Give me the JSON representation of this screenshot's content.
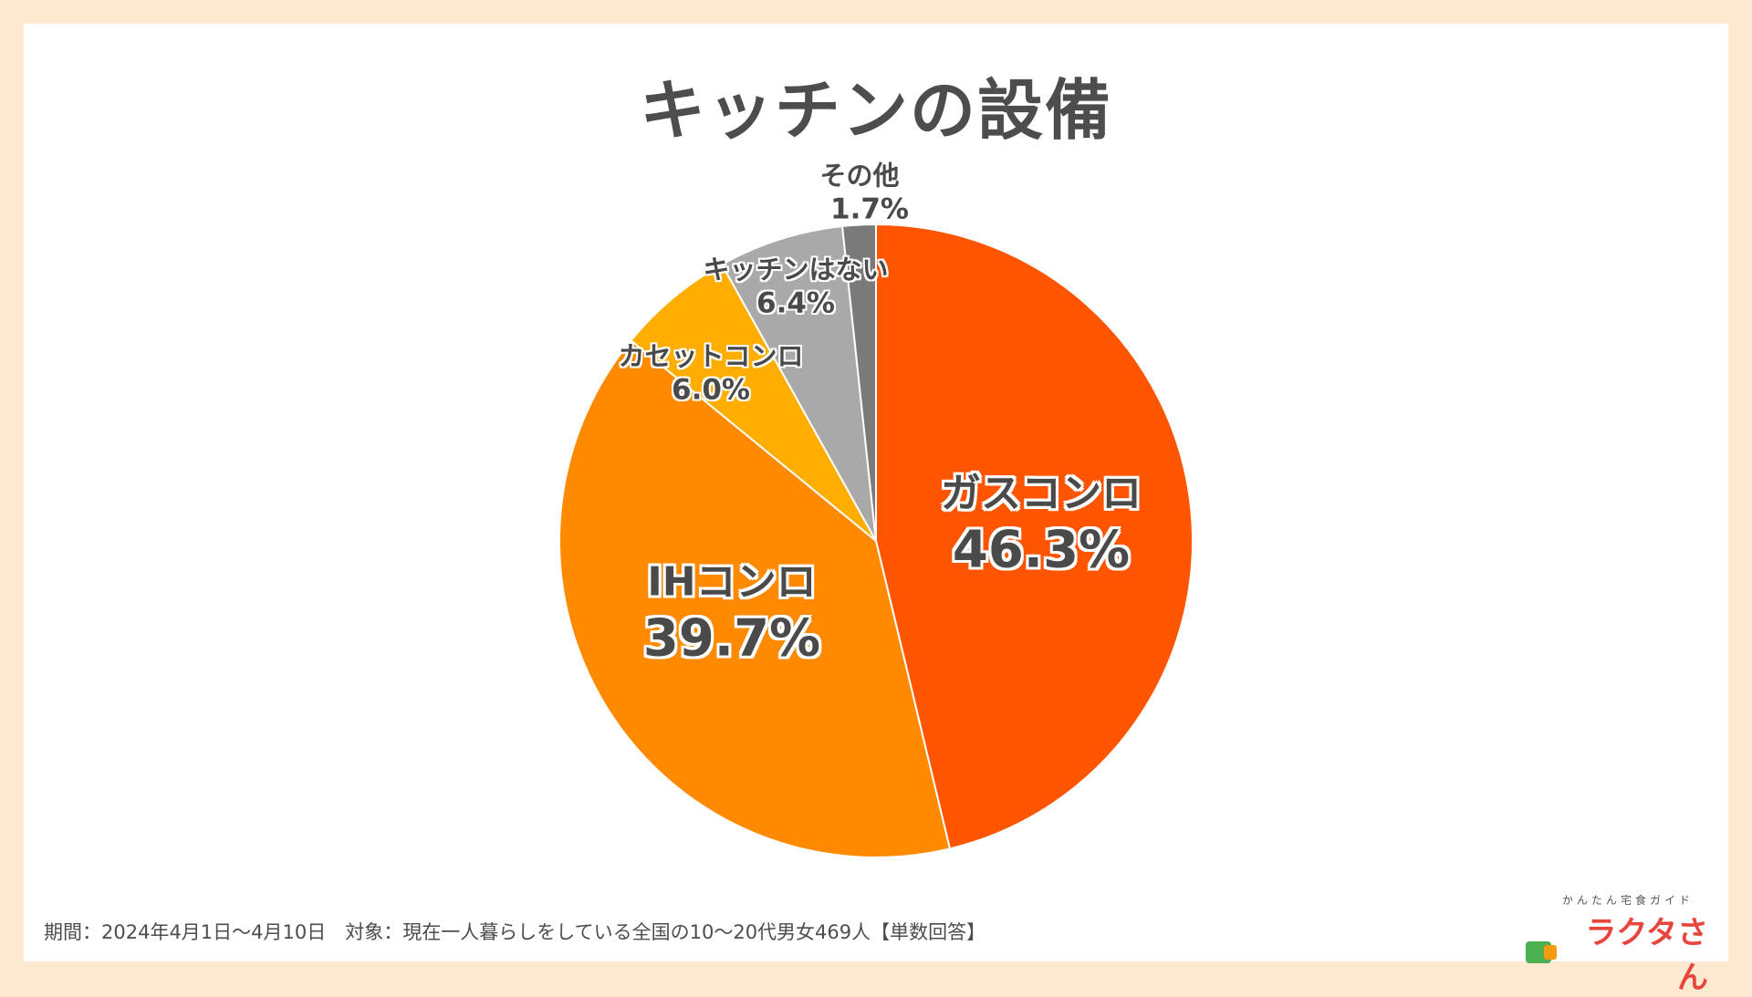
{
  "title": "キッチンの設備",
  "chart_data": {
    "type": "pie",
    "title": "キッチンの設備",
    "start": "12 o'clock, clockwise",
    "slices": [
      {
        "label": "ガスコンロ",
        "value": 46.3,
        "pct_label": "46.3%",
        "color": "#ff5500"
      },
      {
        "label": "IHコンロ",
        "value": 39.7,
        "pct_label": "39.7%",
        "color": "#ff8a00"
      },
      {
        "label": "カセットコンロ",
        "value": 6.0,
        "pct_label": "6.0%",
        "color": "#ffae00"
      },
      {
        "label": "キッチンはない",
        "value": 6.4,
        "pct_label": "6.4%",
        "color": "#a9a9a9"
      },
      {
        "label": "その他",
        "value": 1.7,
        "pct_label": "1.7%",
        "color": "#7a7a7a"
      }
    ]
  },
  "footer": {
    "text": "期間：2024年4月1日〜4月10日　対象：現在一人暮らしをしている全国の10〜20代男女469人【単数回答】"
  },
  "logo": {
    "sub": "かんたん宅食ガイド",
    "main": "ラクタさん"
  }
}
